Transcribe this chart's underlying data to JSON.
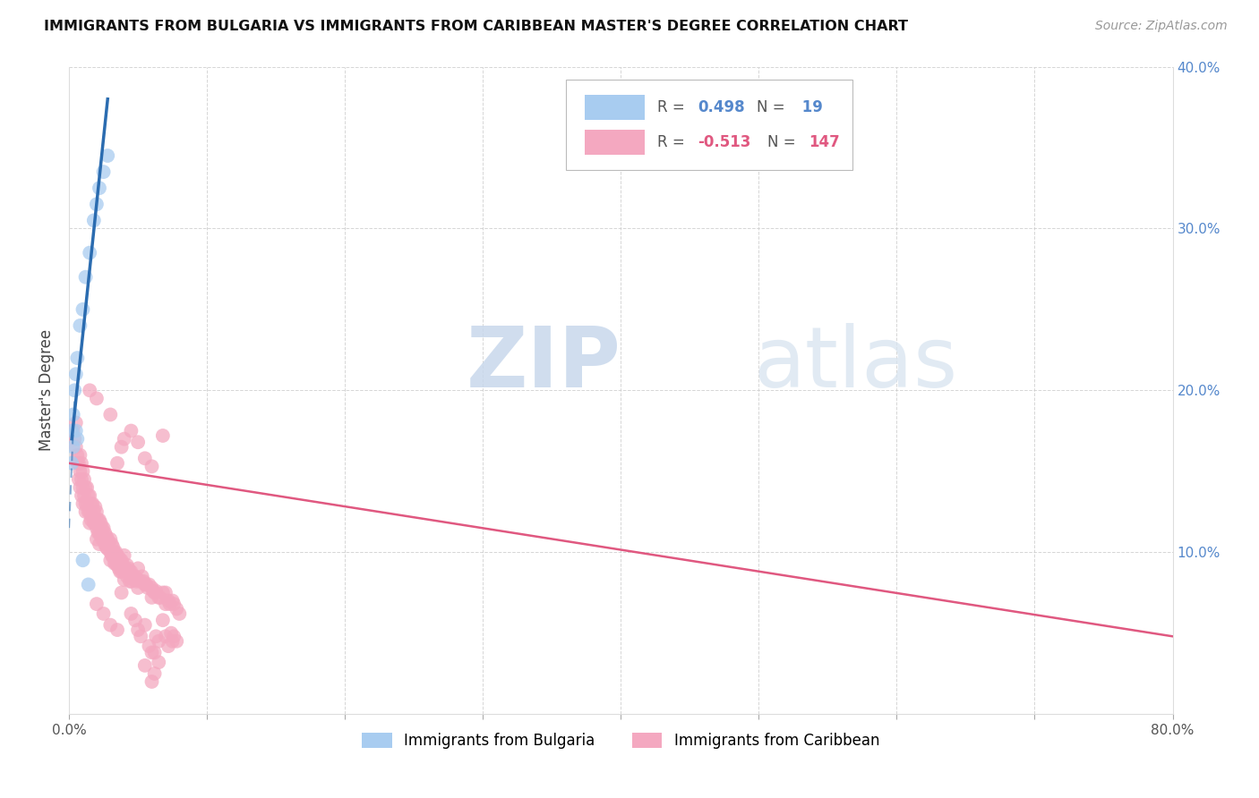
{
  "title": "IMMIGRANTS FROM BULGARIA VS IMMIGRANTS FROM CARIBBEAN MASTER'S DEGREE CORRELATION CHART",
  "source": "Source: ZipAtlas.com",
  "ylabel": "Master's Degree",
  "xlim": [
    0.0,
    0.8
  ],
  "ylim": [
    0.0,
    0.4
  ],
  "bulgaria_color": "#A8CCF0",
  "caribbean_color": "#F4A8C0",
  "bulgaria_line_color": "#2B6CB0",
  "caribbean_line_color": "#E05880",
  "watermark_zip": "ZIP",
  "watermark_atlas": "atlas",
  "bulgaria_points": [
    [
      0.002,
      0.175
    ],
    [
      0.003,
      0.185
    ],
    [
      0.004,
      0.2
    ],
    [
      0.005,
      0.21
    ],
    [
      0.006,
      0.22
    ],
    [
      0.008,
      0.24
    ],
    [
      0.01,
      0.25
    ],
    [
      0.012,
      0.27
    ],
    [
      0.015,
      0.285
    ],
    [
      0.018,
      0.305
    ],
    [
      0.02,
      0.315
    ],
    [
      0.022,
      0.325
    ],
    [
      0.025,
      0.335
    ],
    [
      0.028,
      0.345
    ],
    [
      0.002,
      0.155
    ],
    [
      0.003,
      0.165
    ],
    [
      0.005,
      0.175
    ],
    [
      0.006,
      0.17
    ],
    [
      0.01,
      0.095
    ],
    [
      0.014,
      0.08
    ]
  ],
  "caribbean_points": [
    [
      0.003,
      0.175
    ],
    [
      0.004,
      0.17
    ],
    [
      0.005,
      0.165
    ],
    [
      0.005,
      0.18
    ],
    [
      0.006,
      0.16
    ],
    [
      0.006,
      0.155
    ],
    [
      0.007,
      0.155
    ],
    [
      0.007,
      0.145
    ],
    [
      0.008,
      0.16
    ],
    [
      0.008,
      0.15
    ],
    [
      0.008,
      0.14
    ],
    [
      0.009,
      0.155
    ],
    [
      0.009,
      0.145
    ],
    [
      0.009,
      0.135
    ],
    [
      0.01,
      0.15
    ],
    [
      0.01,
      0.14
    ],
    [
      0.01,
      0.13
    ],
    [
      0.011,
      0.145
    ],
    [
      0.011,
      0.135
    ],
    [
      0.012,
      0.14
    ],
    [
      0.012,
      0.13
    ],
    [
      0.012,
      0.125
    ],
    [
      0.013,
      0.14
    ],
    [
      0.013,
      0.13
    ],
    [
      0.014,
      0.135
    ],
    [
      0.014,
      0.125
    ],
    [
      0.015,
      0.135
    ],
    [
      0.015,
      0.125
    ],
    [
      0.015,
      0.118
    ],
    [
      0.016,
      0.13
    ],
    [
      0.016,
      0.12
    ],
    [
      0.017,
      0.13
    ],
    [
      0.017,
      0.122
    ],
    [
      0.018,
      0.125
    ],
    [
      0.018,
      0.118
    ],
    [
      0.019,
      0.128
    ],
    [
      0.019,
      0.118
    ],
    [
      0.02,
      0.125
    ],
    [
      0.02,
      0.115
    ],
    [
      0.02,
      0.108
    ],
    [
      0.021,
      0.12
    ],
    [
      0.021,
      0.112
    ],
    [
      0.022,
      0.12
    ],
    [
      0.022,
      0.112
    ],
    [
      0.022,
      0.105
    ],
    [
      0.023,
      0.118
    ],
    [
      0.023,
      0.11
    ],
    [
      0.024,
      0.115
    ],
    [
      0.024,
      0.108
    ],
    [
      0.025,
      0.115
    ],
    [
      0.025,
      0.108
    ],
    [
      0.026,
      0.112
    ],
    [
      0.026,
      0.105
    ],
    [
      0.027,
      0.11
    ],
    [
      0.027,
      0.103
    ],
    [
      0.028,
      0.108
    ],
    [
      0.028,
      0.102
    ],
    [
      0.029,
      0.106
    ],
    [
      0.03,
      0.108
    ],
    [
      0.03,
      0.1
    ],
    [
      0.03,
      0.095
    ],
    [
      0.031,
      0.105
    ],
    [
      0.031,
      0.098
    ],
    [
      0.032,
      0.103
    ],
    [
      0.032,
      0.097
    ],
    [
      0.033,
      0.1
    ],
    [
      0.033,
      0.093
    ],
    [
      0.034,
      0.1
    ],
    [
      0.034,
      0.093
    ],
    [
      0.035,
      0.098
    ],
    [
      0.035,
      0.092
    ],
    [
      0.036,
      0.097
    ],
    [
      0.036,
      0.09
    ],
    [
      0.037,
      0.095
    ],
    [
      0.037,
      0.088
    ],
    [
      0.038,
      0.095
    ],
    [
      0.038,
      0.088
    ],
    [
      0.039,
      0.092
    ],
    [
      0.04,
      0.098
    ],
    [
      0.04,
      0.09
    ],
    [
      0.04,
      0.083
    ],
    [
      0.041,
      0.09
    ],
    [
      0.042,
      0.092
    ],
    [
      0.042,
      0.085
    ],
    [
      0.043,
      0.09
    ],
    [
      0.044,
      0.088
    ],
    [
      0.044,
      0.082
    ],
    [
      0.045,
      0.088
    ],
    [
      0.045,
      0.082
    ],
    [
      0.046,
      0.085
    ],
    [
      0.047,
      0.083
    ],
    [
      0.048,
      0.085
    ],
    [
      0.049,
      0.082
    ],
    [
      0.05,
      0.09
    ],
    [
      0.05,
      0.083
    ],
    [
      0.05,
      0.078
    ],
    [
      0.052,
      0.082
    ],
    [
      0.053,
      0.085
    ],
    [
      0.054,
      0.082
    ],
    [
      0.055,
      0.08
    ],
    [
      0.056,
      0.08
    ],
    [
      0.057,
      0.078
    ],
    [
      0.058,
      0.08
    ],
    [
      0.06,
      0.078
    ],
    [
      0.06,
      0.072
    ],
    [
      0.061,
      0.076
    ],
    [
      0.062,
      0.075
    ],
    [
      0.063,
      0.076
    ],
    [
      0.065,
      0.072
    ],
    [
      0.066,
      0.072
    ],
    [
      0.068,
      0.075
    ],
    [
      0.07,
      0.075
    ],
    [
      0.07,
      0.068
    ],
    [
      0.072,
      0.07
    ],
    [
      0.073,
      0.068
    ],
    [
      0.075,
      0.07
    ],
    [
      0.076,
      0.068
    ],
    [
      0.078,
      0.065
    ],
    [
      0.08,
      0.062
    ],
    [
      0.02,
      0.195
    ],
    [
      0.03,
      0.185
    ],
    [
      0.038,
      0.165
    ],
    [
      0.045,
      0.175
    ],
    [
      0.05,
      0.168
    ],
    [
      0.055,
      0.158
    ],
    [
      0.06,
      0.153
    ],
    [
      0.015,
      0.2
    ],
    [
      0.04,
      0.17
    ],
    [
      0.035,
      0.155
    ],
    [
      0.068,
      0.172
    ],
    [
      0.038,
      0.075
    ],
    [
      0.045,
      0.062
    ],
    [
      0.048,
      0.058
    ],
    [
      0.05,
      0.052
    ],
    [
      0.052,
      0.048
    ],
    [
      0.055,
      0.055
    ],
    [
      0.058,
      0.042
    ],
    [
      0.06,
      0.038
    ],
    [
      0.062,
      0.038
    ],
    [
      0.063,
      0.048
    ],
    [
      0.065,
      0.045
    ],
    [
      0.065,
      0.032
    ],
    [
      0.068,
      0.058
    ],
    [
      0.07,
      0.048
    ],
    [
      0.072,
      0.042
    ],
    [
      0.074,
      0.05
    ],
    [
      0.075,
      0.045
    ],
    [
      0.076,
      0.048
    ],
    [
      0.078,
      0.045
    ],
    [
      0.025,
      0.062
    ],
    [
      0.02,
      0.068
    ],
    [
      0.03,
      0.055
    ],
    [
      0.035,
      0.052
    ],
    [
      0.055,
      0.03
    ],
    [
      0.06,
      0.02
    ],
    [
      0.062,
      0.025
    ]
  ]
}
